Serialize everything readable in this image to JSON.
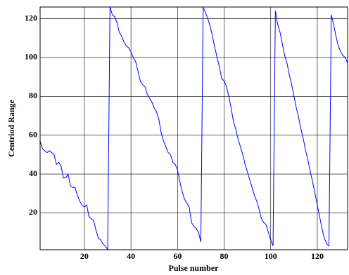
{
  "chart_data": {
    "type": "line",
    "x_label": "Pulse number",
    "y_label": "Centriod Range",
    "x": [
      1,
      2,
      3,
      4,
      5,
      6,
      7,
      8,
      9,
      10,
      11,
      12,
      13,
      14,
      15,
      16,
      17,
      18,
      19,
      20,
      21,
      22,
      23,
      24,
      25,
      26,
      27,
      28,
      29,
      30,
      31,
      32,
      33,
      34,
      35,
      36,
      37,
      38,
      39,
      40,
      41,
      42,
      43,
      44,
      45,
      46,
      47,
      48,
      49,
      50,
      51,
      52,
      53,
      54,
      55,
      56,
      57,
      58,
      59,
      60,
      61,
      62,
      63,
      64,
      65,
      66,
      67,
      68,
      69,
      70,
      71,
      72,
      73,
      74,
      75,
      76,
      77,
      78,
      79,
      80,
      81,
      82,
      83,
      84,
      85,
      86,
      87,
      88,
      89,
      90,
      91,
      92,
      93,
      94,
      95,
      96,
      97,
      98,
      99,
      100,
      101,
      102,
      103,
      104,
      105,
      106,
      107,
      108,
      109,
      110,
      111,
      112,
      113,
      114,
      115,
      116,
      117,
      118,
      119,
      120,
      121,
      122,
      123,
      124,
      125,
      126,
      127,
      128,
      129,
      130,
      131,
      132,
      133
    ],
    "series": [
      {
        "color": "#0000ff",
        "values": [
          57,
          53,
          52,
          51,
          52,
          51,
          50,
          45,
          46,
          44,
          38,
          38,
          40,
          34,
          33,
          33,
          29,
          26,
          24,
          23,
          24,
          18,
          17,
          16,
          11,
          7,
          6,
          4,
          3,
          1,
          126,
          122,
          121,
          118,
          113,
          111,
          108,
          106,
          105,
          103,
          100,
          98,
          93,
          88,
          86,
          85,
          81,
          79,
          77,
          74,
          72,
          68,
          61,
          57,
          54,
          51,
          50,
          46,
          45,
          42,
          36,
          31,
          27,
          25,
          23,
          15,
          13,
          12,
          10,
          5,
          126,
          123,
          120,
          116,
          111,
          105,
          100,
          95,
          89,
          88,
          85,
          80,
          74,
          67,
          63,
          58,
          54,
          50,
          45,
          41,
          37,
          33,
          29,
          26,
          22,
          17,
          15,
          14,
          10,
          6,
          3,
          124,
          117,
          113,
          107,
          101,
          97,
          91,
          86,
          80,
          74,
          69,
          63,
          58,
          52,
          47,
          41,
          36,
          30,
          24,
          18,
          12,
          7,
          4,
          3,
          122,
          117,
          111,
          106,
          103,
          101,
          100,
          97
        ]
      }
    ],
    "xlim": [
      1,
      133
    ],
    "ylim": [
      1,
      126
    ],
    "xticks": [
      20,
      40,
      60,
      80,
      100,
      120
    ],
    "yticks": [
      20,
      40,
      60,
      80,
      100,
      120
    ],
    "grid": true
  }
}
